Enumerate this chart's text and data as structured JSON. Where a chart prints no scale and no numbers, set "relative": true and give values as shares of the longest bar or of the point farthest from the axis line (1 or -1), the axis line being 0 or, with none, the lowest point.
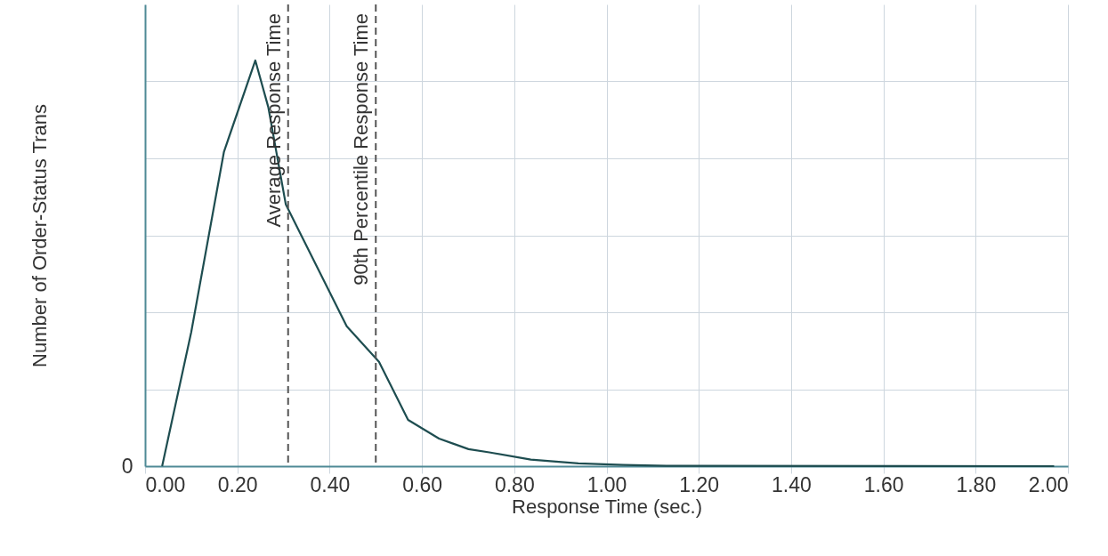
{
  "chart_data": {
    "type": "line",
    "xlabel": "Response Time (sec.)",
    "ylabel": "Number of Order-Status Trans",
    "relative": true,
    "x": [
      0.037,
      0.1,
      0.171,
      0.239,
      0.267,
      0.305,
      0.437,
      0.507,
      0.57,
      0.637,
      0.701,
      0.746,
      0.836,
      0.939,
      1.036,
      1.13,
      1.97
    ],
    "series": [
      {
        "color": "#1e4d50",
        "values": [
          0,
          0.33,
          0.775,
          1.0,
          0.885,
          0.645,
          0.345,
          0.257,
          0.114,
          0.068,
          0.042,
          0.034,
          0.016,
          0.007,
          0.003,
          0.001,
          0
        ]
      }
    ],
    "xlim": [
      0,
      2
    ],
    "xticks": [
      {
        "value": 0,
        "label": "0.00"
      },
      {
        "value": 0.2,
        "label": "0.20"
      },
      {
        "value": 0.4,
        "label": "0.40"
      },
      {
        "value": 0.6,
        "label": "0.60"
      },
      {
        "value": 0.8,
        "label": "0.80"
      },
      {
        "value": 1,
        "label": "1.00"
      },
      {
        "value": 1.2,
        "label": "1.20"
      },
      {
        "value": 1.4,
        "label": "1.40"
      },
      {
        "value": 1.6,
        "label": "1.60"
      },
      {
        "value": 1.8,
        "label": "1.80"
      },
      {
        "value": 2,
        "label": "2.00"
      }
    ],
    "annotations": [
      "0"
    ],
    "grid": true,
    "ref_lines": [
      {
        "axis": "x",
        "value": 0.31,
        "label": "Average Response Time",
        "color": "#555555",
        "line_style": "dashed"
      },
      {
        "axis": "x",
        "value": 0.5,
        "label": "90th Percentile Response Time",
        "color": "#555555",
        "line_style": "dashed"
      }
    ]
  }
}
